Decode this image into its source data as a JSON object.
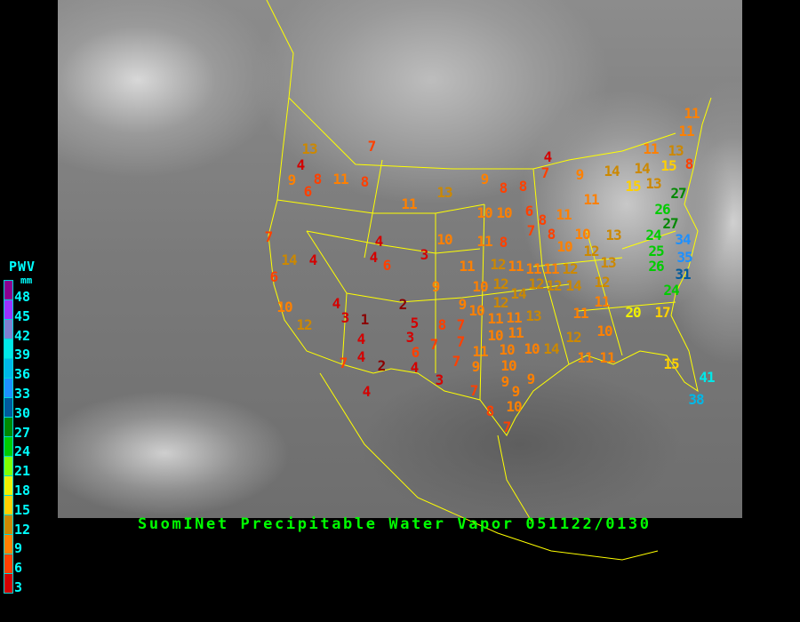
{
  "title": "SuomINet Precipitable Water Vapor 051122/0130",
  "legend": {
    "label": "PWV",
    "unit": "mm",
    "ticks": [
      "48",
      "45",
      "42",
      "39",
      "36",
      "33",
      "30",
      "27",
      "24",
      "21",
      "18",
      "15",
      "12",
      "9",
      "6",
      "3"
    ],
    "colors": [
      "#8b0090",
      "#9933ff",
      "#7f7fd0",
      "#00e8e8",
      "#00b8e8",
      "#1e90ff",
      "#005a9c",
      "#008800",
      "#00cc00",
      "#80ff00",
      "#f0f000",
      "#ffd000",
      "#cc8800",
      "#ff8000",
      "#ff4000",
      "#d40000",
      "#8b0000"
    ]
  },
  "background": {
    "map_border_color": "#ffff00"
  },
  "stations": [
    13,
    4,
    7,
    9,
    8,
    11,
    8,
    6,
    13,
    11,
    9,
    7,
    4,
    3,
    4,
    6,
    10,
    14,
    4,
    6,
    9,
    4,
    2,
    3,
    1,
    10,
    12,
    5,
    3,
    8,
    7,
    4,
    7,
    7,
    4,
    7,
    2,
    6,
    4,
    7,
    9,
    3,
    4,
    7,
    8,
    10,
    7,
    4,
    7,
    9,
    11,
    11,
    13,
    8,
    15,
    14,
    14,
    15,
    13,
    11,
    8,
    8,
    11,
    10,
    10,
    6,
    8,
    11,
    7,
    8,
    27,
    26,
    27,
    11,
    8,
    10,
    13,
    10,
    12,
    13,
    24,
    25,
    34,
    35,
    26,
    31,
    24,
    11,
    12,
    11,
    11,
    11,
    12,
    10,
    12,
    12,
    14,
    12,
    14,
    12,
    9,
    10,
    12,
    11,
    13,
    11,
    11,
    11,
    20,
    17,
    10,
    11,
    10,
    11,
    10,
    10,
    14,
    12,
    10,
    11,
    11,
    15,
    41,
    38,
    9,
    9,
    9
  ]
}
